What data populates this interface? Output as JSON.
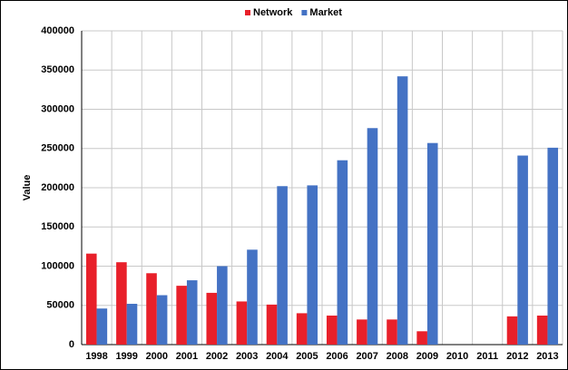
{
  "chart_data": {
    "type": "bar",
    "y_label": "Value",
    "categories": [
      "1998",
      "1999",
      "2000",
      "2001",
      "2002",
      "2003",
      "2004",
      "2005",
      "2006",
      "2007",
      "2008",
      "2009",
      "2010",
      "2011",
      "2012",
      "2013"
    ],
    "series": [
      {
        "name": "Network",
        "color": "#e8202a",
        "values": [
          116000,
          105000,
          91000,
          75000,
          66000,
          55000,
          51000,
          40000,
          37000,
          32000,
          32000,
          17000,
          null,
          null,
          36000,
          37000
        ]
      },
      {
        "name": "Market",
        "color": "#4472c4",
        "values": [
          46000,
          52000,
          63000,
          82000,
          100000,
          121000,
          202000,
          203000,
          235000,
          276000,
          342000,
          257000,
          null,
          null,
          241000,
          251000
        ]
      }
    ],
    "ylim": [
      0,
      400000
    ],
    "yticks": [
      0,
      50000,
      100000,
      150000,
      200000,
      250000,
      300000,
      350000,
      400000
    ],
    "grid": true,
    "legend": "top"
  }
}
